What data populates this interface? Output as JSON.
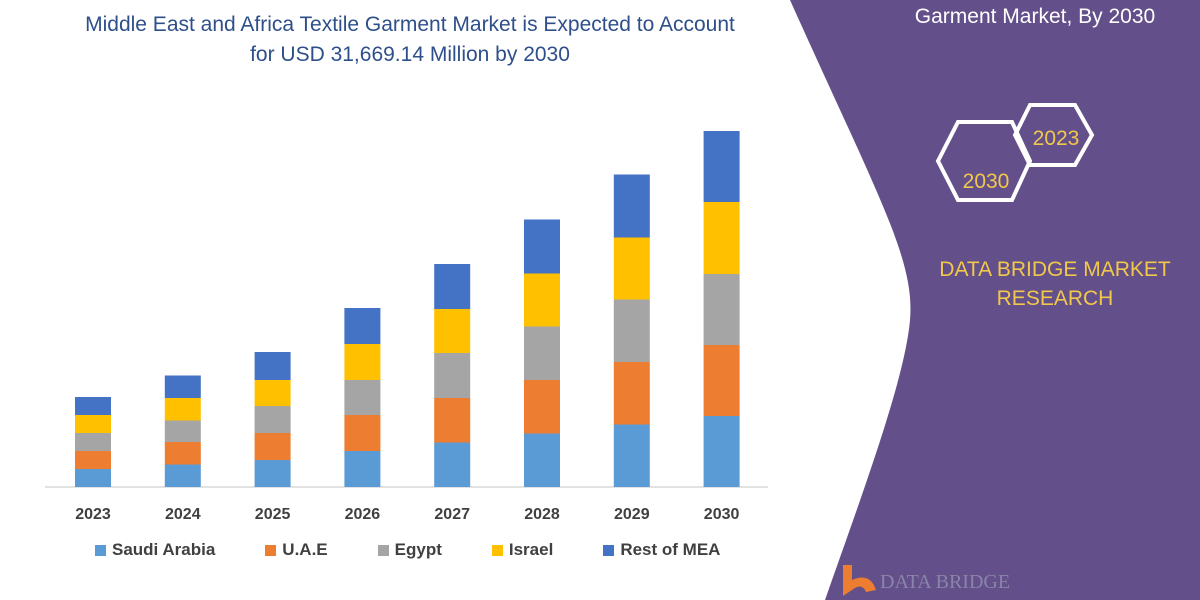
{
  "title_line1": "Middle East and Africa Textile Garment Market is Expected to Account",
  "title_line2": "for USD 31,669.14 Million by 2030",
  "side_panel": {
    "title": "Garment Market, By 2030",
    "hex_years": [
      "2023",
      "2030"
    ],
    "brand": "DATA BRIDGE MARKET RESEARCH",
    "logo_text": "DATA BRIDGE",
    "panel_color": "#634f8a",
    "accent_color": "#f2c84b"
  },
  "chart_data": {
    "type": "bar",
    "stacked": true,
    "title": "",
    "xlabel": "",
    "ylabel": "",
    "categories": [
      "2023",
      "2024",
      "2025",
      "2026",
      "2027",
      "2028",
      "2029",
      "2030"
    ],
    "series": [
      {
        "name": "Saudi Arabia",
        "color": "#5b9bd5",
        "values": [
          18,
          22.5,
          27,
          36,
          44.5,
          53.5,
          62.5,
          71
        ]
      },
      {
        "name": "U.A.E",
        "color": "#ed7d31",
        "values": [
          18,
          22.5,
          27,
          36,
          44.5,
          53.5,
          62.5,
          71
        ]
      },
      {
        "name": "Egypt",
        "color": "#a5a5a5",
        "values": [
          18,
          21.5,
          27,
          35,
          45,
          53.5,
          62.5,
          71
        ]
      },
      {
        "name": "Israel",
        "color": "#ffc000",
        "values": [
          18,
          22.5,
          26,
          36,
          44,
          53,
          62,
          72
        ]
      },
      {
        "name": "Rest of MEA",
        "color": "#4472c4",
        "values": [
          18,
          22.5,
          28,
          36,
          45,
          54,
          63,
          71
        ]
      }
    ],
    "y_axis_shown": false,
    "grid": false,
    "legend": "bottom"
  }
}
